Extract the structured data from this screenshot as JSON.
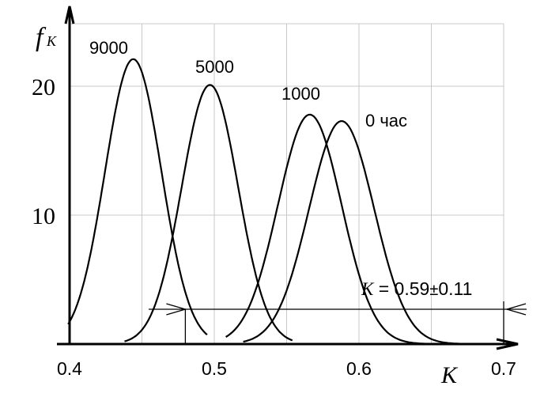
{
  "chart_data": {
    "type": "line",
    "xlabel": "K",
    "ylabel": "f",
    "ylabel_sub": "K",
    "xlim": [
      0.4,
      0.7
    ],
    "ylim": [
      0,
      26
    ],
    "x_ticks": [
      {
        "value": 0.4,
        "label": "0.4"
      },
      {
        "value": 0.5,
        "label": "0.5"
      },
      {
        "value": 0.6,
        "label": "0.6"
      },
      {
        "value": 0.7,
        "label": "0.7"
      }
    ],
    "y_ticks": [
      {
        "value": 10,
        "label": "10"
      },
      {
        "value": 20,
        "label": "20"
      }
    ],
    "grid": true,
    "series": [
      {
        "name": "9000",
        "mean": 0.444,
        "sd": 0.0195,
        "peak": 22.1,
        "xmin": 0.399,
        "xmax": 0.495,
        "values": [
          [
            0.4,
            0.8
          ],
          [
            0.42,
            10.0
          ],
          [
            0.444,
            22.1
          ],
          [
            0.46,
            15.2
          ],
          [
            0.48,
            3.4
          ],
          [
            0.495,
            0.2
          ]
        ]
      },
      {
        "name": "5000",
        "mean": 0.497,
        "sd": 0.0195,
        "peak": 20.1,
        "xmin": 0.438,
        "xmax": 0.554,
        "values": [
          [
            0.44,
            0.2
          ],
          [
            0.47,
            8.0
          ],
          [
            0.497,
            20.1
          ],
          [
            0.52,
            10.8
          ],
          [
            0.54,
            2.3
          ],
          [
            0.554,
            0.4
          ]
        ]
      },
      {
        "name": "1000",
        "mean": 0.566,
        "sd": 0.022,
        "peak": 17.8,
        "xmin": 0.508,
        "xmax": 0.66,
        "values": [
          [
            0.51,
            0.9
          ],
          [
            0.54,
            8.5
          ],
          [
            0.566,
            17.8
          ],
          [
            0.59,
            10.7
          ],
          [
            0.62,
            1.9
          ],
          [
            0.66,
            0.1
          ]
        ]
      },
      {
        "name": "0 час",
        "mean": 0.588,
        "sd": 0.0225,
        "peak": 17.3,
        "xmin": 0.52,
        "xmax": 0.682,
        "values": [
          [
            0.53,
            1.2
          ],
          [
            0.56,
            8.3
          ],
          [
            0.588,
            17.3
          ],
          [
            0.61,
            10.5
          ],
          [
            0.64,
            1.9
          ],
          [
            0.68,
            0.1
          ]
        ]
      }
    ],
    "series_labels": [
      {
        "text": "9000",
        "for": "9000"
      },
      {
        "text": "5000",
        "for": "5000"
      },
      {
        "text": "1000",
        "for": "1000"
      },
      {
        "text": "0 час",
        "for": "0 час"
      }
    ],
    "annotation": {
      "var": "K",
      "text": " = 0.59",
      "pm": "±",
      "err": "0.11",
      "center": 0.59,
      "half_width": 0.11,
      "level": 2.7,
      "tick_at": 0.48
    }
  }
}
